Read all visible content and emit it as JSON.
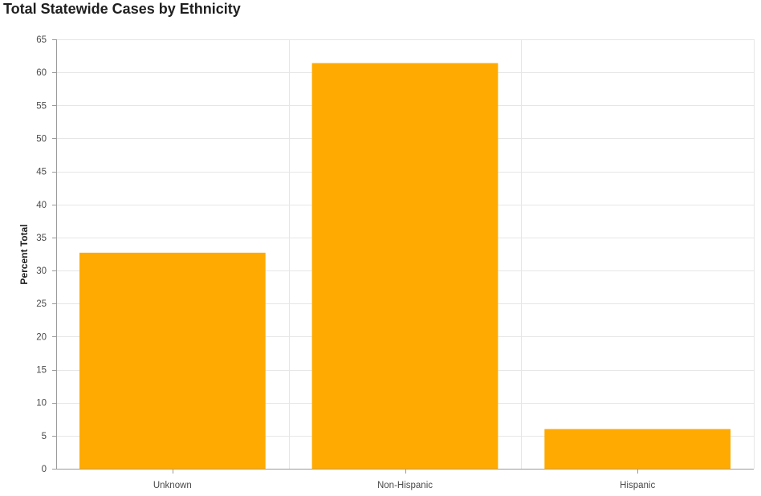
{
  "chart_data": {
    "type": "bar",
    "title": "Total Statewide Cases by Ethnicity",
    "xlabel": "",
    "ylabel": "Percent Total",
    "categories": [
      "Unknown",
      "Non-Hispanic",
      "Hispanic"
    ],
    "values": [
      32.7,
      61.4,
      6.0
    ],
    "ylim": [
      0,
      65
    ],
    "yticks": [
      0,
      5,
      10,
      15,
      20,
      25,
      30,
      35,
      40,
      45,
      50,
      55,
      60,
      65
    ],
    "grid": true,
    "legend": "none",
    "bar_color": "#FFAA00"
  }
}
